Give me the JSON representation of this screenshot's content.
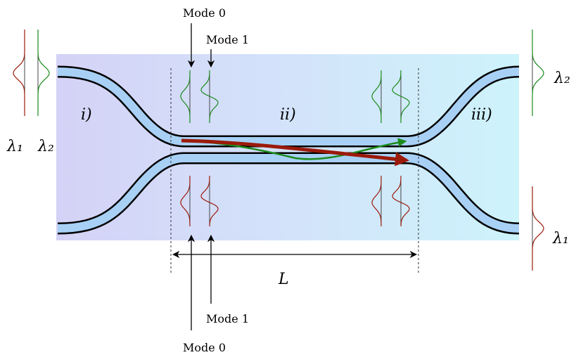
{
  "top_labels": [
    "Mode 0",
    "Mode 1"
  ],
  "bottom_labels": [
    "Mode 1",
    "Mode 0"
  ],
  "regions": [
    "i)",
    "ii)",
    "iii)"
  ],
  "input_labels": [
    "λ₁",
    "λ₂"
  ],
  "output_labels": [
    "λ₂",
    "λ₁"
  ],
  "length_label": "L"
}
